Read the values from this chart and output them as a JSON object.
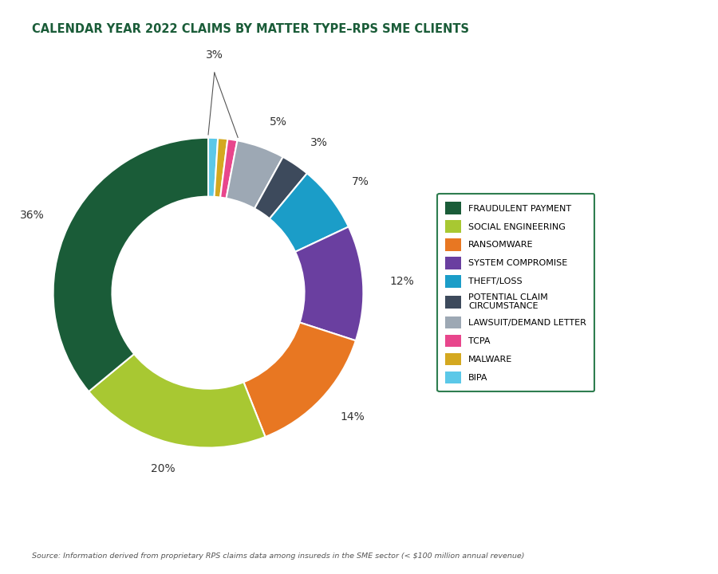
{
  "title": "CALENDAR YEAR 2022 CLAIMS BY MATTER TYPE–RPS SME CLIENTS",
  "title_color": "#1a5c38",
  "source_text": "Source: Information derived from proprietary RPS claims data among insureds in the SME sector (< $100 million annual revenue)",
  "labels": [
    "FRAUDULENT PAYMENT",
    "SOCIAL ENGINEERING",
    "RANSOMWARE",
    "SYSTEM COMPROMISE",
    "THEFT/LOSS",
    "POTENTIAL CLAIM\nCIRCUMSTANCE",
    "LAWSUIT/DEMAND LETTER",
    "TCPA",
    "MALWARE",
    "BIPA"
  ],
  "values": [
    36,
    20,
    14,
    12,
    7,
    3,
    5,
    1,
    1,
    1
  ],
  "colors": [
    "#1a5c38",
    "#a8c832",
    "#e87722",
    "#6a3fa0",
    "#1b9dc8",
    "#3d4a5c",
    "#9da8b4",
    "#e8468c",
    "#d4a820",
    "#5bc8e8"
  ],
  "background_color": "#ffffff",
  "legend_box_color": "#2e7d4f",
  "source_color": "#555555"
}
